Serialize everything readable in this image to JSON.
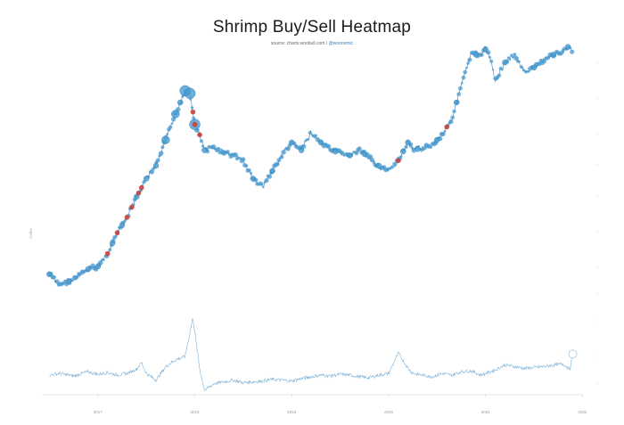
{
  "chart_data": {
    "type": "scatter",
    "title": "Shrimp Buy/Sell Heatmap",
    "subtitle_source": "source: charts.woobull.com",
    "subtitle_link": "@woonomic",
    "ylabel": "Coins",
    "x_tick_labels": [
      "2017",
      "2018",
      "2019",
      "2020",
      "2021",
      "2022"
    ],
    "y_tick_labels_right": [
      "",
      "",
      "",
      "",
      "",
      "",
      "",
      "",
      ""
    ],
    "colors": {
      "buy": "#4a9bd0",
      "sell": "#c9413a",
      "line": "#7fb2d6"
    },
    "price_series": {
      "name": "",
      "x": [
        2016.5,
        2016.6,
        2016.75,
        2016.9,
        2017.0,
        2017.1,
        2017.2,
        2017.3,
        2017.4,
        2017.5,
        2017.6,
        2017.7,
        2017.8,
        2017.9,
        2017.95,
        2018.0,
        2018.05,
        2018.1,
        2018.2,
        2018.3,
        2018.4,
        2018.5,
        2018.6,
        2018.7,
        2018.8,
        2018.9,
        2019.0,
        2019.1,
        2019.2,
        2019.3,
        2019.4,
        2019.5,
        2019.6,
        2019.7,
        2019.8,
        2019.9,
        2020.0,
        2020.1,
        2020.2,
        2020.25,
        2020.35,
        2020.45,
        2020.55,
        2020.65,
        2020.75,
        2020.85,
        2020.95,
        2021.0,
        2021.05,
        2021.1,
        2021.2,
        2021.3,
        2021.4,
        2021.5,
        2021.6,
        2021.7,
        2021.8,
        2021.85,
        2021.9
      ],
      "y": [
        0.82,
        0.86,
        0.84,
        0.8,
        0.79,
        0.74,
        0.66,
        0.6,
        0.52,
        0.45,
        0.4,
        0.3,
        0.2,
        0.11,
        0.12,
        0.24,
        0.28,
        0.34,
        0.33,
        0.35,
        0.36,
        0.38,
        0.45,
        0.48,
        0.42,
        0.36,
        0.31,
        0.34,
        0.27,
        0.31,
        0.34,
        0.35,
        0.36,
        0.34,
        0.37,
        0.4,
        0.42,
        0.38,
        0.31,
        0.34,
        0.33,
        0.32,
        0.28,
        0.22,
        0.09,
        -0.03,
        -0.03,
        -0.05,
        -0.02,
        0.07,
        0.0,
        -0.03,
        0.04,
        0.02,
        -0.01,
        -0.03,
        -0.04,
        -0.06,
        -0.04
      ]
    },
    "flow_series": {
      "name": "",
      "x": [
        2016.5,
        2016.6,
        2016.75,
        2016.9,
        2017.0,
        2017.1,
        2017.2,
        2017.3,
        2017.4,
        2017.45,
        2017.5,
        2017.6,
        2017.7,
        2017.8,
        2017.9,
        2017.98,
        2018.05,
        2018.1,
        2018.2,
        2018.3,
        2018.4,
        2018.5,
        2018.6,
        2018.7,
        2018.8,
        2018.9,
        2019.0,
        2019.1,
        2019.2,
        2019.3,
        2019.4,
        2019.5,
        2019.6,
        2019.7,
        2019.8,
        2019.9,
        2020.0,
        2020.1,
        2020.2,
        2020.25,
        2020.35,
        2020.45,
        2020.55,
        2020.65,
        2020.75,
        2020.85,
        2020.95,
        2021.0,
        2021.1,
        2021.2,
        2021.3,
        2021.4,
        2021.5,
        2021.6,
        2021.7,
        2021.8,
        2021.87,
        2021.9
      ],
      "y": [
        0.2,
        0.22,
        0.19,
        0.24,
        0.21,
        0.23,
        0.2,
        0.22,
        0.27,
        0.35,
        0.22,
        0.14,
        0.3,
        0.38,
        0.42,
        0.88,
        0.28,
        0.02,
        0.1,
        0.12,
        0.14,
        0.11,
        0.12,
        0.13,
        0.15,
        0.14,
        0.13,
        0.16,
        0.18,
        0.2,
        0.19,
        0.21,
        0.2,
        0.18,
        0.17,
        0.2,
        0.22,
        0.46,
        0.28,
        0.22,
        0.2,
        0.18,
        0.22,
        0.2,
        0.24,
        0.25,
        0.2,
        0.22,
        0.26,
        0.32,
        0.3,
        0.28,
        0.29,
        0.3,
        0.32,
        0.33,
        0.27,
        0.45
      ]
    },
    "sell_points_x": [
      2017.1,
      2017.2,
      2017.3,
      2017.35,
      2017.42,
      2017.45,
      2017.98,
      2018.0,
      2018.05,
      2020.1,
      2020.6
    ],
    "buy_points_x": [
      2016.5,
      2016.7,
      2016.9,
      2017.0,
      2017.15,
      2017.25,
      2017.4,
      2017.5,
      2017.6,
      2017.7,
      2017.8,
      2017.85,
      2017.9,
      2017.95,
      2018.0,
      2018.1,
      2018.3,
      2018.6,
      2018.8,
      2019.0,
      2019.1,
      2019.3,
      2019.45,
      2019.6,
      2019.75,
      2019.9,
      2020.15,
      2020.2,
      2020.3,
      2020.5,
      2020.7,
      2020.9,
      2021.0,
      2021.2,
      2021.5,
      2021.7,
      2021.85
    ]
  }
}
